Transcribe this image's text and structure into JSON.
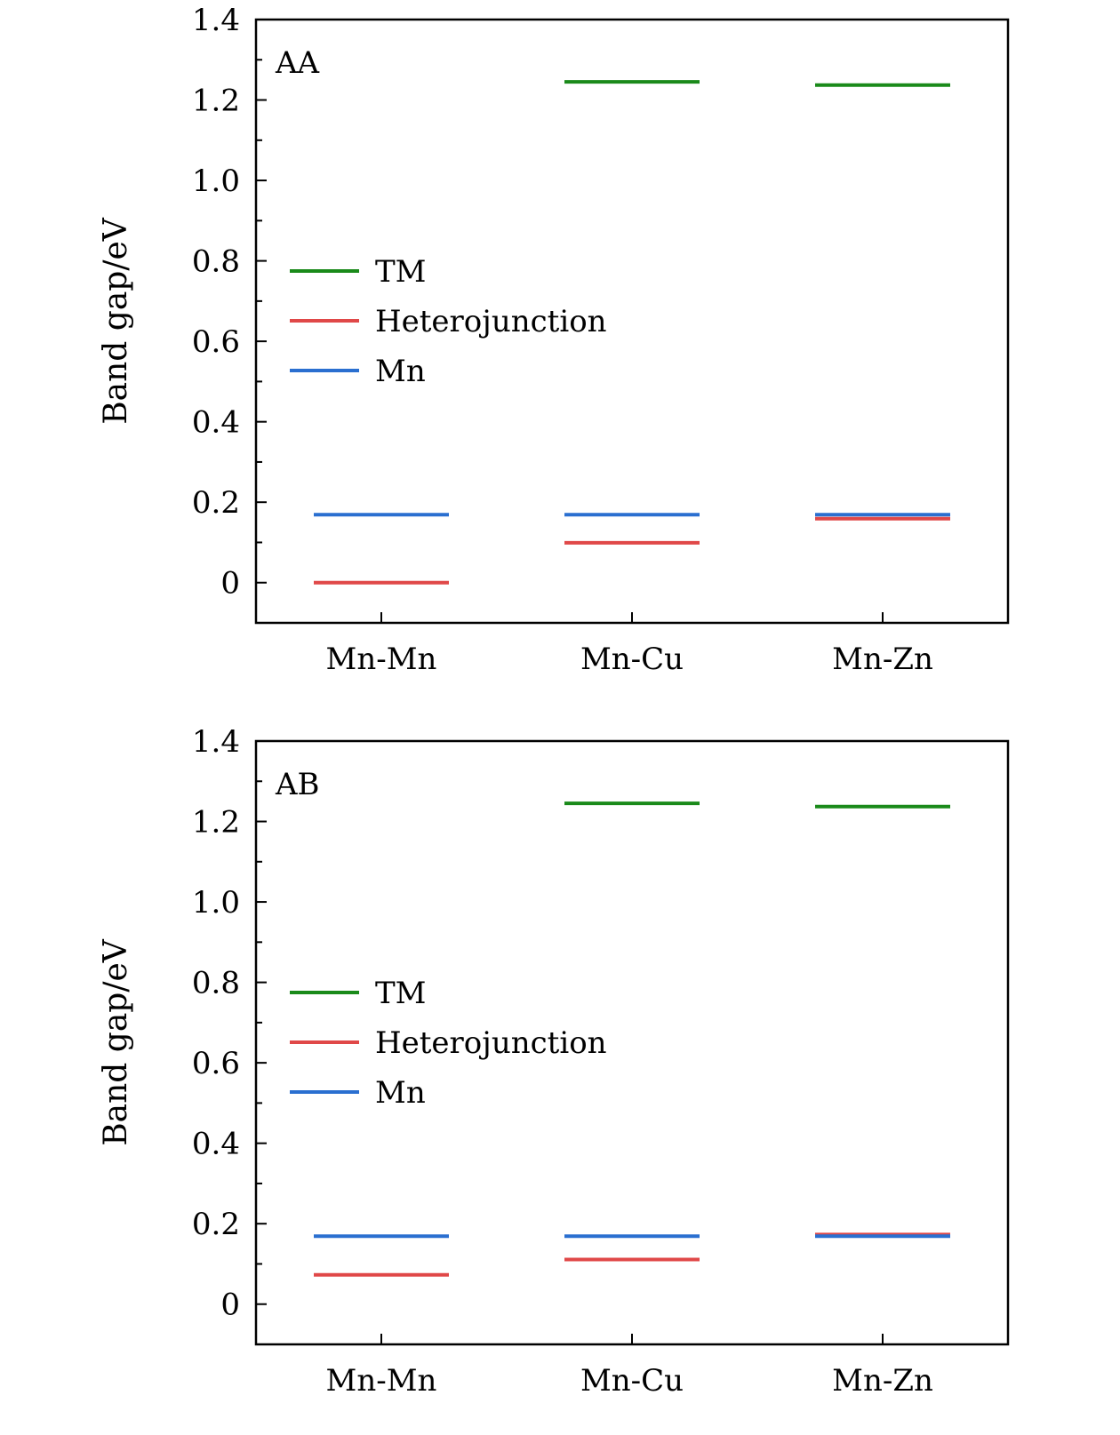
{
  "chart_data": [
    {
      "type": "line",
      "panel_label": "AA",
      "ylabel": "Band gap/eV",
      "xlabel": "",
      "categories": [
        "Mn-Mn",
        "Mn-Cu",
        "Mn-Zn"
      ],
      "ylim": [
        -0.1,
        1.4
      ],
      "yticks": [
        0,
        0.2,
        0.4,
        0.6,
        0.8,
        1.0,
        1.2,
        1.4
      ],
      "ytick_labels": [
        "0",
        "0.2",
        "0.4",
        "0.6",
        "0.8",
        "1.0",
        "1.2",
        "1.4"
      ],
      "legend_position": "center-left",
      "series": [
        {
          "name": "TM",
          "color": "#1a8a1a",
          "values": [
            null,
            1.245,
            1.237
          ]
        },
        {
          "name": "Heterojunction",
          "color": "#e04848",
          "values": [
            0.0,
            0.099,
            0.159
          ]
        },
        {
          "name": "Mn",
          "color": "#2a6fd0",
          "values": [
            0.169,
            0.169,
            0.169
          ]
        }
      ]
    },
    {
      "type": "line",
      "panel_label": "AB",
      "ylabel": "Band gap/eV",
      "xlabel": "",
      "categories": [
        "Mn-Mn",
        "Mn-Cu",
        "Mn-Zn"
      ],
      "ylim": [
        -0.1,
        1.4
      ],
      "yticks": [
        0,
        0.2,
        0.4,
        0.6,
        0.8,
        1.0,
        1.2,
        1.4
      ],
      "ytick_labels": [
        "0",
        "0.2",
        "0.4",
        "0.6",
        "0.8",
        "1.0",
        "1.2",
        "1.4"
      ],
      "legend_position": "center-left",
      "series": [
        {
          "name": "TM",
          "color": "#1a8a1a",
          "values": [
            null,
            1.245,
            1.237
          ]
        },
        {
          "name": "Heterojunction",
          "color": "#e04848",
          "values": [
            0.073,
            0.111,
            0.173
          ]
        },
        {
          "name": "Mn",
          "color": "#2a6fd0",
          "values": [
            0.169,
            0.169,
            0.169
          ]
        }
      ]
    }
  ]
}
